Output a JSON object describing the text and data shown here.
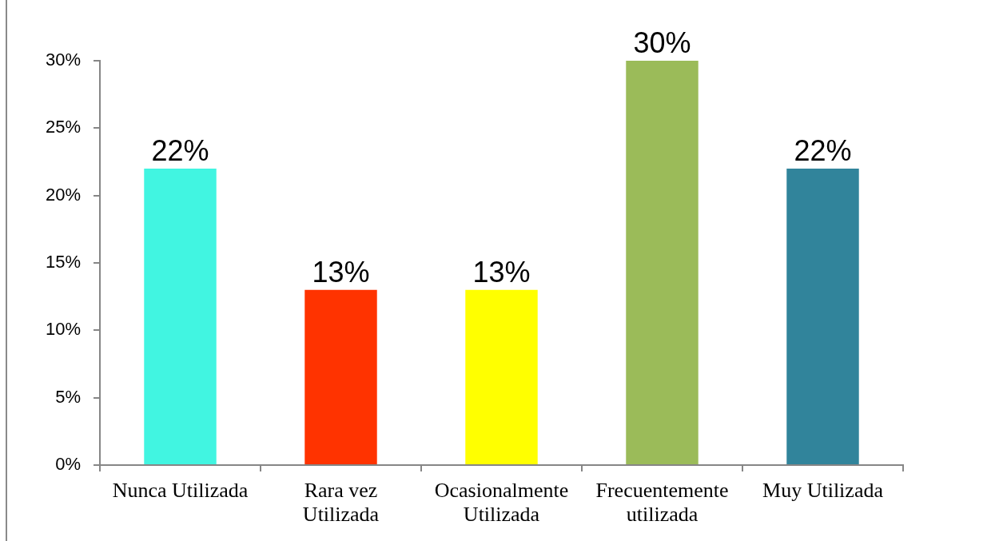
{
  "chart_data": {
    "type": "bar",
    "categories": [
      "Nunca Utilizada",
      "Rara vez Utilizada",
      "Ocasionalmente Utilizada",
      "Frecuentemente utilizada",
      "Muy Utilizada"
    ],
    "values": [
      22,
      13,
      13,
      30,
      22
    ],
    "colors": [
      "#41f5e1",
      "#ff3300",
      "#ffff00",
      "#9bbb59",
      "#31849b"
    ],
    "value_labels": [
      "22%",
      "13%",
      "13%",
      "30%",
      "22%"
    ],
    "ylim": [
      0,
      30
    ],
    "yticks": [
      {
        "value": 0,
        "label": "0%"
      },
      {
        "value": 5,
        "label": "5%"
      },
      {
        "value": 10,
        "label": "10%"
      },
      {
        "value": 15,
        "label": "15%"
      },
      {
        "value": 20,
        "label": "20%"
      },
      {
        "value": 25,
        "label": "25%"
      },
      {
        "value": 30,
        "label": "30%"
      }
    ],
    "grid": false,
    "legend": false
  }
}
